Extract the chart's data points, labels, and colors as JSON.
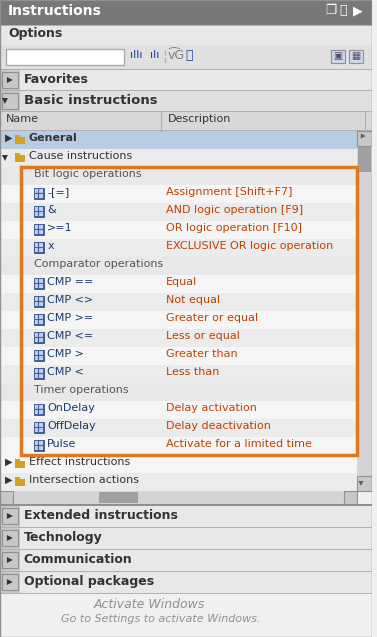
{
  "title": "Instructions",
  "bg_color": "#f0f0f0",
  "header_color": "#787878",
  "header_text_color": "#ffffff",
  "section_header_color": "#d4d4d4",
  "row_alt_color": "#e8e8e8",
  "row_color": "#f0f0f0",
  "highlight_color": "#b8cce4",
  "orange_border": "#e07820",
  "dark_blue": "#1a3a6a",
  "orange_text": "#c04000",
  "folder_color": "#d4a020",
  "bit_logic_items": [
    [
      "-[=]",
      "Assignment [Shift+F7]"
    ],
    [
      "&",
      "AND logic operation [F9]"
    ],
    [
      ">=1",
      "OR logic operation [F10]"
    ],
    [
      "x",
      "EXCLUSIVE OR logic operation"
    ]
  ],
  "comparator_items": [
    [
      "CMP ==",
      "Equal"
    ],
    [
      "CMP <>",
      "Not equal"
    ],
    [
      "CMP >=",
      "Greater or equal"
    ],
    [
      "CMP <=",
      "Less or equal"
    ],
    [
      "CMP >",
      "Greater than"
    ],
    [
      "CMP <",
      "Less than"
    ]
  ],
  "timer_items": [
    [
      "OnDelay",
      "Delay activation"
    ],
    [
      "OffDelay",
      "Delay deactivation"
    ],
    [
      "Pulse",
      "Activate for a limited time"
    ]
  ],
  "bottom_sections": [
    "Extended instructions",
    "Technology",
    "Communication",
    "Optional packages"
  ],
  "watermark_line1": "Activate Windows",
  "watermark_line2": "Go to Settings to activate Windows."
}
